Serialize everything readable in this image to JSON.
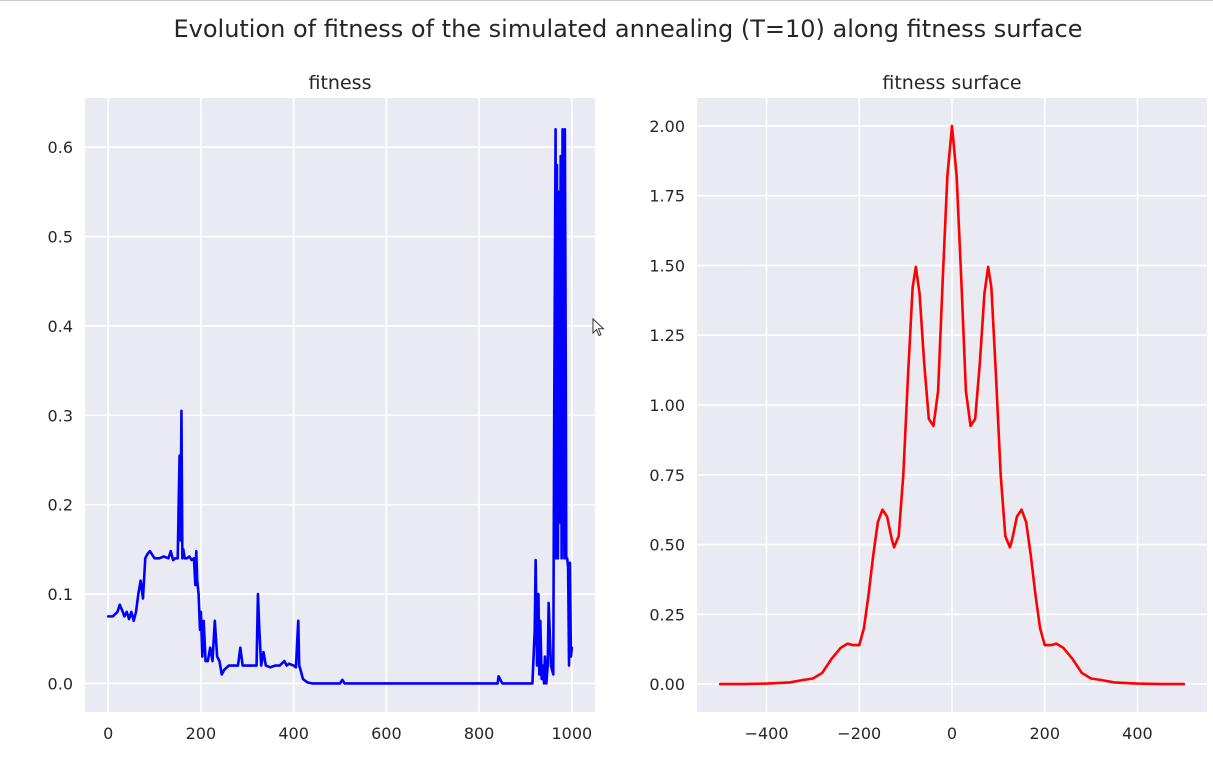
{
  "figure": {
    "suptitle": "Evolution of fitness of the simulated annealing (T=10) along fitness surface"
  },
  "colors": {
    "panel_background": "#eaeaf2",
    "grid": "#ffffff",
    "text": "#262626",
    "fitness_line": "#0000ff",
    "surface_line": "#ff0000"
  },
  "chart_data": [
    {
      "type": "line",
      "title": "fitness",
      "xlabel": "",
      "ylabel": "",
      "xlim": [
        -50,
        1050
      ],
      "ylim": [
        -0.032,
        0.655
      ],
      "xticks": [
        0,
        200,
        400,
        600,
        800,
        1000
      ],
      "yticks": [
        0.0,
        0.1,
        0.2,
        0.3,
        0.4,
        0.5,
        0.6
      ],
      "grid": true,
      "series": [
        {
          "color": "#0000ff",
          "x": [
            0,
            10,
            20,
            25,
            30,
            35,
            40,
            45,
            50,
            55,
            60,
            65,
            70,
            75,
            80,
            85,
            90,
            100,
            110,
            120,
            130,
            135,
            140,
            145,
            150,
            152,
            154,
            156,
            158,
            160,
            162,
            165,
            170,
            175,
            180,
            185,
            188,
            190,
            192,
            195,
            198,
            200,
            203,
            206,
            210,
            215,
            220,
            225,
            230,
            235,
            240,
            245,
            250,
            260,
            270,
            280,
            285,
            290,
            300,
            310,
            320,
            323,
            326,
            330,
            335,
            340,
            350,
            360,
            370,
            380,
            385,
            390,
            400,
            405,
            408,
            410,
            412,
            415,
            420,
            430,
            440,
            460,
            500,
            505,
            510,
            550,
            600,
            700,
            800,
            840,
            842,
            850,
            900,
            915,
            920,
            922,
            925,
            928,
            930,
            932,
            935,
            938,
            940,
            942,
            945,
            948,
            950,
            955,
            960,
            962,
            965,
            966,
            968,
            970,
            972,
            974,
            976,
            978,
            980,
            982,
            984,
            985,
            987,
            988,
            990,
            992,
            994,
            996,
            998,
            1000
          ],
          "y": [
            0.075,
            0.075,
            0.08,
            0.088,
            0.082,
            0.075,
            0.08,
            0.072,
            0.08,
            0.07,
            0.08,
            0.1,
            0.115,
            0.095,
            0.14,
            0.145,
            0.148,
            0.14,
            0.14,
            0.142,
            0.14,
            0.148,
            0.138,
            0.14,
            0.14,
            0.2,
            0.255,
            0.16,
            0.305,
            0.14,
            0.15,
            0.14,
            0.14,
            0.142,
            0.138,
            0.14,
            0.11,
            0.148,
            0.115,
            0.1,
            0.06,
            0.08,
            0.03,
            0.07,
            0.025,
            0.025,
            0.04,
            0.025,
            0.07,
            0.03,
            0.025,
            0.01,
            0.015,
            0.02,
            0.02,
            0.02,
            0.04,
            0.02,
            0.02,
            0.02,
            0.02,
            0.1,
            0.06,
            0.02,
            0.035,
            0.02,
            0.018,
            0.02,
            0.02,
            0.025,
            0.02,
            0.022,
            0.02,
            0.018,
            0.05,
            0.07,
            0.02,
            0.015,
            0.005,
            0.001,
            0.0,
            0.0,
            0.0,
            0.004,
            0.0,
            0.0,
            0.0,
            0.0,
            0.0,
            0.0,
            0.008,
            0.0,
            0.0,
            0.0,
            0.06,
            0.138,
            0.02,
            0.1,
            0.01,
            0.07,
            0.005,
            0.02,
            0.0,
            0.03,
            0.0,
            0.02,
            0.09,
            0.02,
            0.01,
            0.3,
            0.62,
            0.14,
            0.58,
            0.14,
            0.55,
            0.18,
            0.59,
            0.14,
            0.62,
            0.3,
            0.14,
            0.62,
            0.35,
            0.14,
            0.14,
            0.13,
            0.02,
            0.135,
            0.03,
            0.04
          ]
        }
      ]
    },
    {
      "type": "line",
      "title": "fitness surface",
      "xlabel": "",
      "ylabel": "",
      "xlim": [
        -550,
        550
      ],
      "ylim": [
        -0.1,
        2.1
      ],
      "xticks": [
        -400,
        -200,
        0,
        200,
        400
      ],
      "yticks": [
        0.0,
        0.25,
        0.5,
        0.75,
        1.0,
        1.25,
        1.5,
        1.75,
        2.0
      ],
      "grid": true,
      "series": [
        {
          "color": "#ff0000",
          "x": [
            -500,
            -450,
            -400,
            -350,
            -320,
            -300,
            -280,
            -260,
            -240,
            -225,
            -215,
            -200,
            -190,
            -180,
            -170,
            -160,
            -150,
            -140,
            -130,
            -125,
            -115,
            -105,
            -95,
            -85,
            -78,
            -70,
            -60,
            -50,
            -40,
            -30,
            -20,
            -10,
            0,
            10,
            20,
            30,
            40,
            50,
            60,
            70,
            78,
            85,
            95,
            105,
            115,
            125,
            130,
            140,
            150,
            160,
            170,
            180,
            190,
            200,
            215,
            225,
            240,
            260,
            280,
            300,
            320,
            350,
            400,
            450,
            500
          ],
          "y": [
            0.0,
            0.0,
            0.002,
            0.006,
            0.015,
            0.02,
            0.04,
            0.09,
            0.13,
            0.145,
            0.14,
            0.14,
            0.2,
            0.32,
            0.46,
            0.58,
            0.625,
            0.6,
            0.52,
            0.49,
            0.53,
            0.75,
            1.1,
            1.42,
            1.495,
            1.4,
            1.15,
            0.95,
            0.925,
            1.05,
            1.45,
            1.82,
            2.0,
            1.82,
            1.45,
            1.05,
            0.925,
            0.95,
            1.15,
            1.4,
            1.495,
            1.42,
            1.1,
            0.75,
            0.53,
            0.49,
            0.52,
            0.6,
            0.625,
            0.58,
            0.46,
            0.32,
            0.2,
            0.14,
            0.14,
            0.145,
            0.13,
            0.09,
            0.04,
            0.02,
            0.015,
            0.006,
            0.002,
            0.0,
            0.0
          ]
        }
      ]
    }
  ]
}
